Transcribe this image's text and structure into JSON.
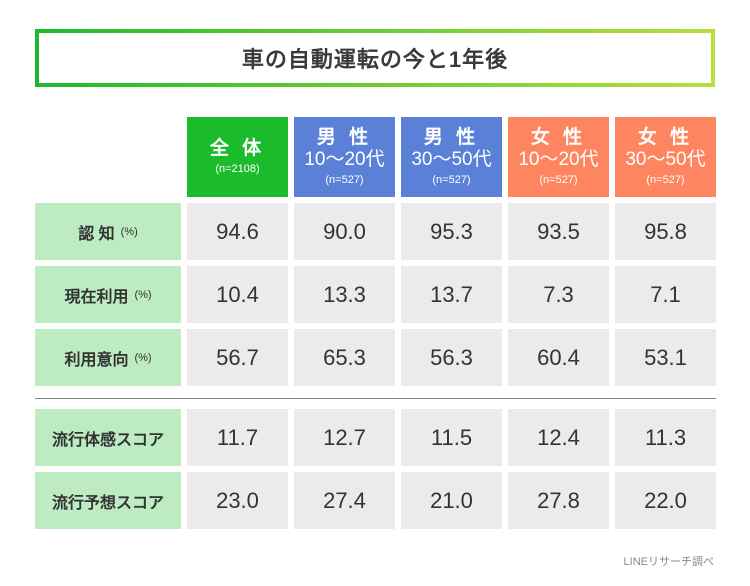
{
  "title": "車の自動運転の今と1年後",
  "colors": {
    "total": "#1cbb2b",
    "male": "#5b80d8",
    "female": "#fd8660",
    "label_bg": "#bdebc2",
    "cell_bg": "#ebebeb"
  },
  "headers": [
    {
      "line1": "全 体",
      "line2": "",
      "n": "(n=2108)"
    },
    {
      "line1": "男 性",
      "line2": "10〜20代",
      "n": "(n=527)"
    },
    {
      "line1": "男 性",
      "line2": "30〜50代",
      "n": "(n=527)"
    },
    {
      "line1": "女 性",
      "line2": "10〜20代",
      "n": "(n=527)"
    },
    {
      "line1": "女 性",
      "line2": "30〜50代",
      "n": "(n=527)"
    }
  ],
  "rows": [
    {
      "label": "認 知",
      "unit": "(%)",
      "values": [
        "94.6",
        "90.0",
        "95.3",
        "93.5",
        "95.8"
      ]
    },
    {
      "label": "現在利用",
      "unit": "(%)",
      "values": [
        "10.4",
        "13.3",
        "13.7",
        "7.3",
        "7.1"
      ]
    },
    {
      "label": "利用意向",
      "unit": "(%)",
      "values": [
        "56.7",
        "65.3",
        "56.3",
        "60.4",
        "53.1"
      ]
    },
    {
      "label": "流行体感スコア",
      "unit": "",
      "values": [
        "11.7",
        "12.7",
        "11.5",
        "12.4",
        "11.3"
      ]
    },
    {
      "label": "流行予想スコア",
      "unit": "",
      "values": [
        "23.0",
        "27.4",
        "21.0",
        "27.8",
        "22.0"
      ]
    }
  ],
  "footer": "LINEリサーチ調べ"
}
